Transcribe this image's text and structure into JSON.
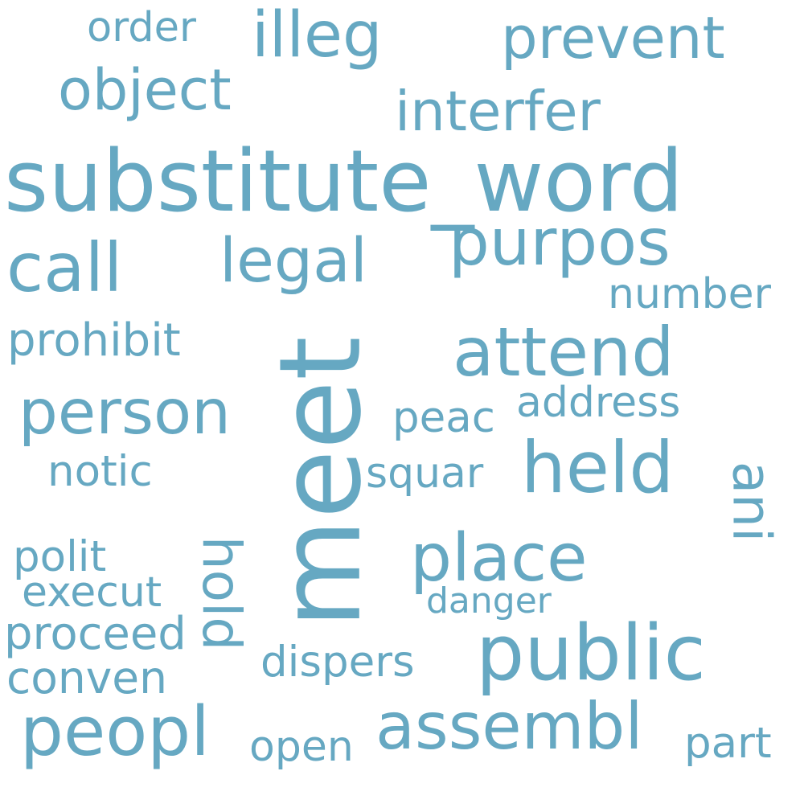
{
  "word_cloud": {
    "color": "#66a8c2",
    "words": [
      {
        "text": "substitute_word"
      },
      {
        "text": "meet"
      },
      {
        "text": "public"
      },
      {
        "text": "held"
      },
      {
        "text": "attend"
      },
      {
        "text": "place"
      },
      {
        "text": "peopl"
      },
      {
        "text": "assembl"
      },
      {
        "text": "person"
      },
      {
        "text": "call"
      },
      {
        "text": "legal"
      },
      {
        "text": "purpos"
      },
      {
        "text": "illeg"
      },
      {
        "text": "prevent"
      },
      {
        "text": "object"
      },
      {
        "text": "interfer"
      },
      {
        "text": "hold"
      },
      {
        "text": "ani"
      },
      {
        "text": "order"
      },
      {
        "text": "number"
      },
      {
        "text": "prohibit"
      },
      {
        "text": "address"
      },
      {
        "text": "peac"
      },
      {
        "text": "notic"
      },
      {
        "text": "squar"
      },
      {
        "text": "polit"
      },
      {
        "text": "execut"
      },
      {
        "text": "danger"
      },
      {
        "text": "proceed"
      },
      {
        "text": "dispers"
      },
      {
        "text": "conven"
      },
      {
        "text": "open"
      },
      {
        "text": "part"
      }
    ]
  }
}
